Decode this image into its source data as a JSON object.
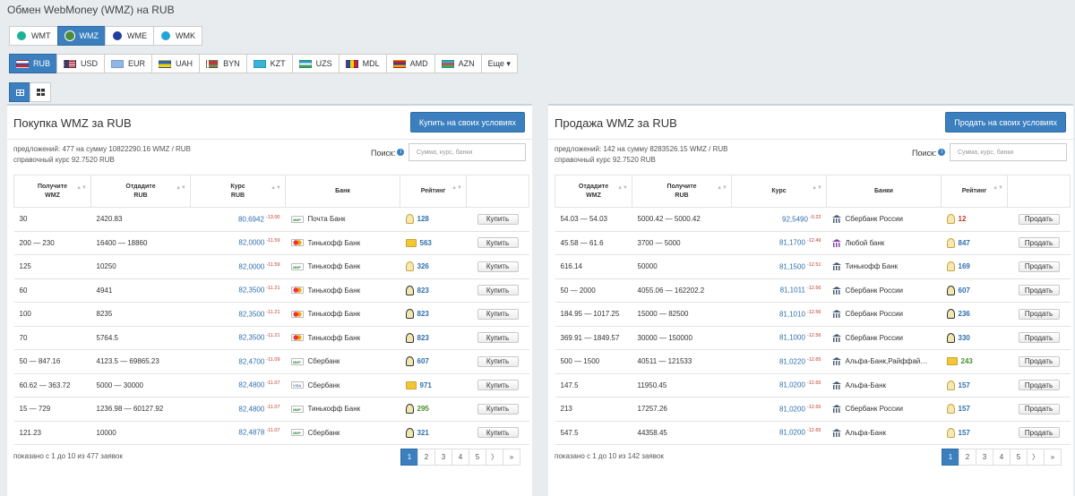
{
  "title": "Обмен WebMoney (WMZ) на RUB",
  "purses": [
    {
      "label": "WMT",
      "color": "#1ab394",
      "active": false
    },
    {
      "label": "WMZ",
      "color": "#4b8b3b",
      "active": true
    },
    {
      "label": "WME",
      "color": "#1f3f9e",
      "active": false
    },
    {
      "label": "WMK",
      "color": "#22a6d8",
      "active": false
    }
  ],
  "currencies": [
    {
      "label": "RUB",
      "flag": "linear-gradient(#fff 33%,#2a4fb5 33% 66%,#d22 66%)",
      "active": true
    },
    {
      "label": "USD",
      "flag": "linear-gradient(90deg,#3c3b6e 40%,transparent 40%),repeating-linear-gradient(#b22234 0 1.3px,#fff 1.3px 2.6px)",
      "active": false
    },
    {
      "label": "EUR",
      "flag": "linear-gradient(#8fb6e6,#8fb6e6)",
      "active": false
    },
    {
      "label": "UAH",
      "flag": "linear-gradient(#2a63c9 50%,#f6d400 50%)",
      "active": false
    },
    {
      "label": "BYN",
      "flag": "linear-gradient(90deg,#fff 18%,transparent 18%),linear-gradient(#c8313e 66%,#4aa657 66%)",
      "active": false
    },
    {
      "label": "KZT",
      "flag": "linear-gradient(#37b3d8,#37b3d8)",
      "active": false
    },
    {
      "label": "UZS",
      "flag": "linear-gradient(#2a9bd0 33%,#fff 33% 66%,#3fa64a 66%)",
      "active": false
    },
    {
      "label": "MDL",
      "flag": "linear-gradient(90deg,#1b4fa5 33%,#f3d200 33% 66%,#cc1f2f 66%)",
      "active": false
    },
    {
      "label": "AMD",
      "flag": "linear-gradient(#d21f2f 33%,#1f3fa5 33% 66%,#f2a800 66%)",
      "active": false
    },
    {
      "label": "AZN",
      "flag": "linear-gradient(#2fa9d9 33%,#e0383f 33% 66%,#4aa657 66%)",
      "active": false
    }
  ],
  "more_label": "Еще ▾",
  "buy": {
    "title": "Покупка WMZ за RUB",
    "button": "Купить на своих условиях",
    "info1": "предложений: 477 на сумму 10822290.16 WMZ / RUB",
    "info2": "справочный курс 92.7520 RUB",
    "search_label": "Поиск:",
    "search_placeholder": "Сумма, курс, банки",
    "headers": [
      "Получите\nWMZ",
      "Отдадите\nRUB",
      "Курс\nRUB",
      "Банк",
      "Рейтинг",
      ""
    ],
    "rows": [
      [
        "30",
        "2420.83",
        "80,6942",
        "-13.00",
        "МИР",
        "Почта Банк",
        "128",
        "lite",
        "Купить"
      ],
      [
        "200 — 230",
        "16400 — 18860",
        "82,0000",
        "-11.59",
        "mc",
        "Тинькофф Банк",
        "563",
        "card",
        "Купить"
      ],
      [
        "125",
        "10250",
        "82,0000",
        "-11.59",
        "МИР",
        "Тинькофф Банк",
        "326",
        "lite",
        "Купить"
      ],
      [
        "60",
        "4941",
        "82,3500",
        "-11.21",
        "mc",
        "Тинькофф Банк",
        "823",
        "dark",
        "Купить"
      ],
      [
        "100",
        "8235",
        "82,3500",
        "-11.21",
        "mc",
        "Тинькофф Банк",
        "823",
        "dark",
        "Купить"
      ],
      [
        "70",
        "5764.5",
        "82,3500",
        "-11.21",
        "mc",
        "Тинькофф Банк",
        "823",
        "dark",
        "Купить"
      ],
      [
        "50 — 847.16",
        "4123.5 — 69865.23",
        "82,4700",
        "-11.09",
        "МИР",
        "Сбербанк",
        "607",
        "dark",
        "Купить"
      ],
      [
        "60.62 — 363.72",
        "5000 — 30000",
        "82,4800",
        "-11.07",
        "VISA",
        "Сбербанк",
        "971",
        "card",
        "Купить"
      ],
      [
        "15 — 729",
        "1236.98 — 60127.92",
        "82,4800",
        "-11.07",
        "МИР",
        "Тинькофф Банк",
        "295",
        "dark-green",
        "Купить"
      ],
      [
        "121.23",
        "10000",
        "82,4878",
        "-11.07",
        "МИР",
        "Сбербанк",
        "321",
        "dark",
        "Купить"
      ]
    ],
    "footer": "показано с 1 до 10 из 477 заявок",
    "pages": [
      "1",
      "2",
      "3",
      "4",
      "5",
      "〉",
      "»"
    ]
  },
  "sell": {
    "title": "Продажа WMZ за RUB",
    "button": "Продать на своих условиях",
    "info1": "предложений: 142 на сумму 8283526.15 WMZ / RUB",
    "info2": "справочный курс 92.7520 RUB",
    "search_label": "Поиск:",
    "search_placeholder": "Сумма, курс, банки",
    "headers": [
      "Отдадите\nWMZ",
      "Получите\nRUB",
      "Курс",
      "Банки",
      "Рейтинг",
      ""
    ],
    "rows": [
      [
        "54.03 — 54.03",
        "5000.42 — 5000.42",
        "92,5490",
        "-0.22",
        "bank",
        "Сбербанк России",
        "12",
        "lite-red",
        "Продать"
      ],
      [
        "45.58 — 61.6",
        "3700 — 5000",
        "81,1700",
        "-12.49",
        "bank-green",
        "Любой банк",
        "847",
        "lite",
        "Продать"
      ],
      [
        "616.14",
        "50000",
        "81,1500",
        "-12.51",
        "bank",
        "Тинькофф Банк",
        "169",
        "lite",
        "Продать"
      ],
      [
        "50 — 2000",
        "4055.06 — 162202.2",
        "81,1011",
        "-12.56",
        "bank",
        "Сбербанк России",
        "607",
        "dark",
        "Продать"
      ],
      [
        "184.95 — 1017.25",
        "15000 — 82500",
        "81,1010",
        "-12.56",
        "bank",
        "Сбербанк России",
        "236",
        "dark",
        "Продать"
      ],
      [
        "369.91 — 1849.57",
        "30000 — 150000",
        "81,1000",
        "-12.56",
        "bank",
        "Сбербанк России",
        "330",
        "dark",
        "Продать"
      ],
      [
        "500 — 1500",
        "40511 — 121533",
        "81,0220",
        "-12.65",
        "bank",
        "Альфа-Банк,Райффай…",
        "243",
        "card-green",
        "Продать"
      ],
      [
        "147.5",
        "11950.45",
        "81,0200",
        "-12.65",
        "bank",
        "Альфа-Банк",
        "157",
        "lite",
        "Продать"
      ],
      [
        "213",
        "17257.26",
        "81,0200",
        "-12.65",
        "bank",
        "Сбербанк России",
        "157",
        "lite",
        "Продать"
      ],
      [
        "547.5",
        "44358.45",
        "81,0200",
        "-12.65",
        "bank",
        "Альфа-Банк",
        "157",
        "lite",
        "Продать"
      ]
    ],
    "footer": "показано с 1 до 10 из 142 заявок",
    "pages": [
      "1",
      "2",
      "3",
      "4",
      "5",
      "〉",
      "»"
    ]
  }
}
